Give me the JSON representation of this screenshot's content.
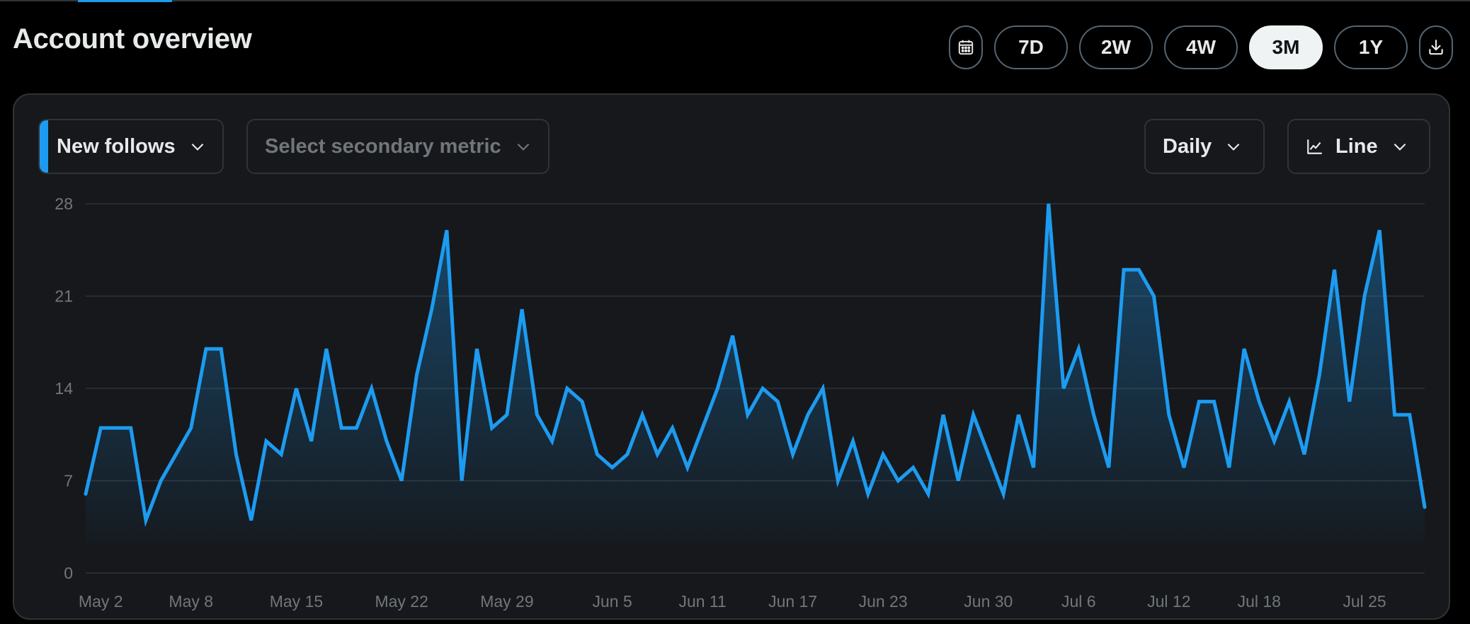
{
  "page": {
    "title": "Account overview"
  },
  "range_buttons": [
    {
      "id": "calendar",
      "icon": "calendar-icon"
    },
    {
      "id": "7d",
      "label": "7D",
      "active": false
    },
    {
      "id": "2w",
      "label": "2W",
      "active": false
    },
    {
      "id": "4w",
      "label": "4W",
      "active": false
    },
    {
      "id": "3m",
      "label": "3M",
      "active": true
    },
    {
      "id": "1y",
      "label": "1Y",
      "active": false
    },
    {
      "id": "download",
      "icon": "download-icon"
    }
  ],
  "controls": {
    "primary_metric": "New follows",
    "secondary_metric_placeholder": "Select secondary metric",
    "frequency": "Daily",
    "chart_type": "Line",
    "chart_type_icon": "line-chart-icon",
    "dropdown_icon": "chevron-down-icon"
  },
  "colors": {
    "accent": "#1d9bf0",
    "background": "#000000",
    "panel": "#16181c",
    "grid": "#2f3336",
    "muted_text": "#71767b"
  },
  "chart_data": {
    "type": "area",
    "title": "",
    "xlabel": "",
    "ylabel": "",
    "ylim": [
      0,
      28
    ],
    "yticks": [
      0,
      7,
      14,
      21,
      28
    ],
    "grid": true,
    "x_start": "May 1",
    "x_end": "Jul 25",
    "x_tick_labels": [
      "May 2",
      "May 8",
      "May 15",
      "May 22",
      "May 29",
      "Jun 5",
      "Jun 11",
      "Jun 17",
      "Jun 23",
      "Jun 30",
      "Jul 6",
      "Jul 12",
      "Jul 18",
      "Jul 25"
    ],
    "x_tick_days": [
      1,
      7,
      14,
      21,
      28,
      35,
      41,
      47,
      53,
      60,
      66,
      72,
      78,
      85
    ],
    "series": [
      {
        "name": "New follows",
        "color": "#1d9bf0",
        "values": [
          6,
          11,
          11,
          11,
          4,
          7,
          9,
          11,
          17,
          17,
          9,
          4,
          10,
          9,
          14,
          10,
          17,
          11,
          11,
          14,
          10,
          7,
          15,
          20,
          26,
          7,
          17,
          11,
          12,
          20,
          12,
          10,
          14,
          13,
          9,
          8,
          9,
          12,
          9,
          11,
          8,
          11,
          14,
          18,
          12,
          14,
          13,
          9,
          12,
          14,
          7,
          10,
          6,
          9,
          7,
          8,
          6,
          12,
          7,
          12,
          9,
          6,
          12,
          8,
          28,
          14,
          17,
          12,
          8,
          23,
          23,
          21,
          12,
          8,
          13,
          13,
          8,
          17,
          13,
          10,
          13,
          9,
          15,
          23,
          13,
          21,
          26,
          12,
          12,
          5
        ]
      }
    ]
  }
}
